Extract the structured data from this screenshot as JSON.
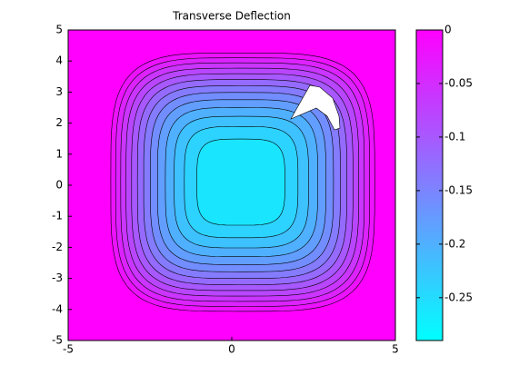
{
  "chart_data": {
    "type": "contour",
    "title": "Transverse Deflection",
    "xlim": [
      -5,
      5
    ],
    "ylim": [
      -5,
      5
    ],
    "xticks": [
      -5,
      0,
      5
    ],
    "yticks": [
      -5,
      -4,
      -3,
      -2,
      -1,
      0,
      1,
      2,
      3,
      4,
      5
    ],
    "levels": [
      -0.02,
      -0.04,
      -0.06,
      -0.08,
      -0.1,
      -0.12,
      -0.14,
      -0.16,
      -0.18,
      -0.2,
      -0.22,
      -0.24,
      -0.26
    ],
    "clim": [
      -0.29,
      0
    ],
    "colormap": "cool",
    "cticks": [
      0,
      -0.05,
      -0.1,
      -0.15,
      -0.2,
      -0.25
    ]
  }
}
